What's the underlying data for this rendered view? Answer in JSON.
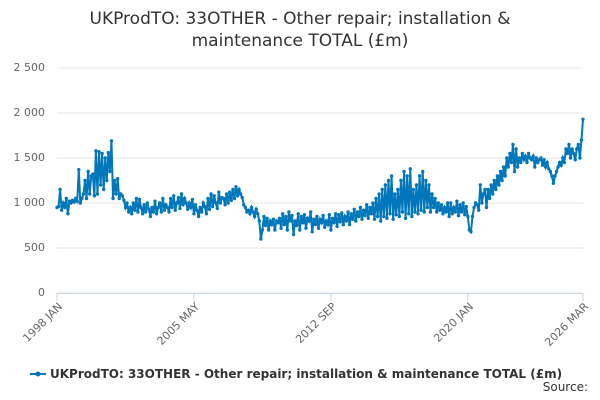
{
  "chart_data": {
    "type": "line",
    "title": [
      "UKProdTO: 33OTHER - Other repair; installation &",
      "maintenance TOTAL (£m)"
    ],
    "source": "Source:",
    "categories": [
      "1998 JAN",
      null,
      null,
      null,
      null,
      null,
      null,
      null,
      null,
      null,
      null,
      null,
      null,
      null,
      null,
      null,
      null,
      null,
      null,
      null,
      null,
      null,
      null,
      null,
      null,
      null,
      null,
      null,
      null,
      null,
      null,
      null,
      null,
      null,
      null,
      null,
      null,
      null,
      null,
      null,
      null,
      null,
      null,
      null,
      null,
      null,
      null,
      null,
      null,
      null,
      null,
      null,
      null,
      null,
      null,
      null,
      null,
      null,
      null,
      null,
      null,
      null,
      null,
      null,
      null,
      null,
      null,
      null,
      null,
      null,
      null,
      null,
      null,
      null,
      null,
      null,
      null,
      null,
      null,
      null,
      null,
      null,
      null,
      null,
      null,
      null,
      null,
      null,
      "2005 MAY",
      null,
      null,
      null,
      null,
      null,
      null,
      null,
      null,
      null,
      null,
      null,
      null,
      null,
      null,
      null,
      null,
      null,
      null,
      null,
      null,
      null,
      null,
      null,
      null,
      null,
      null,
      null,
      null,
      null,
      null,
      null,
      null,
      null,
      null,
      null,
      null,
      null,
      null,
      null,
      null,
      null,
      null,
      null,
      null,
      null,
      null,
      null,
      null,
      null,
      null,
      null,
      null,
      null,
      null,
      null,
      null,
      null,
      null,
      null,
      null,
      null,
      null,
      null,
      null,
      null,
      null,
      null,
      null,
      null,
      null,
      null,
      null,
      null,
      null,
      null,
      null,
      null,
      null,
      null,
      null,
      null,
      null,
      null,
      null,
      null,
      null,
      null,
      "2012 SEP",
      null,
      null,
      null,
      null,
      null,
      null,
      null,
      null,
      null,
      null,
      null,
      null,
      null,
      null,
      null,
      null,
      null,
      null,
      null,
      null,
      null,
      null,
      null,
      null,
      null,
      null,
      null,
      null,
      null,
      null,
      null,
      null,
      null,
      null,
      null,
      null,
      null,
      null,
      null,
      null,
      null,
      null,
      null,
      null,
      null,
      null,
      null,
      null,
      null,
      null,
      null,
      null,
      null,
      null,
      null,
      null,
      null,
      null,
      null,
      null,
      null,
      null,
      null,
      null,
      null,
      null,
      null,
      null,
      null,
      null,
      null,
      null,
      null,
      null,
      null,
      null,
      null,
      null,
      null,
      null,
      null,
      null,
      null,
      null,
      null,
      null,
      null,
      "2020 JAN",
      null,
      null,
      null,
      null,
      null,
      null,
      null,
      null,
      null,
      null,
      null,
      null,
      null,
      null,
      null,
      null,
      null,
      null,
      null,
      null,
      null,
      null,
      null,
      null,
      null,
      null,
      null,
      null,
      null,
      null,
      null,
      null,
      null,
      null,
      null,
      null,
      null,
      null,
      null,
      null,
      null,
      null,
      null,
      null,
      null,
      null,
      null,
      null,
      null,
      null,
      null,
      null,
      null,
      null,
      null,
      null,
      null,
      null,
      null,
      null,
      null,
      null,
      null,
      null,
      null,
      null,
      null,
      null,
      null,
      null,
      null,
      null,
      null,
      "2026 MAR"
    ],
    "series": [
      {
        "name": "UKProdTO: 33OTHER - Other repair; installation & maintenance TOTAL (£m)",
        "color": "#0077bb",
        "values": [
          950,
          960,
          1150,
          920,
          1000,
          950,
          1050,
          880,
          1020,
          1000,
          1030,
          1010,
          1050,
          1020,
          1370,
          1000,
          1050,
          1100,
          1250,
          1050,
          1350,
          1100,
          1300,
          1320,
          1080,
          1580,
          1100,
          1570,
          1200,
          1550,
          1150,
          1500,
          1250,
          1560,
          1350,
          1690,
          1050,
          1250,
          1100,
          1270,
          1050,
          1100,
          1080,
          1030,
          950,
          1000,
          900,
          950,
          880,
          1000,
          920,
          1050,
          900,
          1040,
          950,
          880,
          980,
          900,
          1000,
          930,
          850,
          950,
          900,
          1020,
          880,
          950,
          1000,
          900,
          1050,
          920,
          980,
          950,
          900,
          1050,
          950,
          1080,
          920,
          1000,
          1060,
          940,
          1100,
          980,
          1050,
          1000,
          930,
          1000,
          950,
          1040,
          880,
          980,
          920,
          850,
          950,
          900,
          1000,
          960,
          880,
          1050,
          930,
          1100,
          960,
          1080,
          1000,
          940,
          1120,
          1000,
          1060,
          1050,
          980,
          1100,
          1000,
          1120,
          1030,
          1150,
          1050,
          1180,
          1080,
          1150,
          1100,
          1060,
          980,
          950,
          900,
          920,
          880,
          950,
          900,
          850,
          930,
          880,
          800,
          600,
          700,
          850,
          750,
          830,
          700,
          800,
          760,
          820,
          700,
          800,
          780,
          830,
          720,
          880,
          760,
          850,
          700,
          900,
          800,
          860,
          650,
          800,
          750,
          880,
          700,
          850,
          780,
          870,
          720,
          830,
          800,
          900,
          680,
          820,
          760,
          850,
          720,
          820,
          780,
          860,
          730,
          800,
          760,
          870,
          700,
          830,
          780,
          880,
          740,
          870,
          790,
          890,
          760,
          850,
          800,
          900,
          760,
          880,
          820,
          930,
          800,
          900,
          850,
          950,
          820,
          920,
          860,
          980,
          830,
          950,
          880,
          1000,
          820,
          1050,
          850,
          1100,
          800,
          1150,
          850,
          1200,
          830,
          1250,
          880,
          1300,
          820,
          1100,
          870,
          1150,
          850,
          1250,
          900,
          1350,
          830,
          1300,
          880,
          1380,
          850,
          1150,
          900,
          1200,
          880,
          1300,
          920,
          1350,
          900,
          1250,
          950,
          1200,
          900,
          1100,
          950,
          1050,
          900,
          1000,
          920,
          980,
          880,
          950,
          900,
          1000,
          850,
          1000,
          880,
          950,
          900,
          1020,
          860,
          980,
          900,
          1000,
          870,
          960,
          850,
          700,
          680,
          850,
          950,
          1000,
          980,
          920,
          1200,
          1000,
          1100,
          1150,
          950,
          1150,
          1050,
          1200,
          1100,
          1250,
          1150,
          1300,
          1200,
          1350,
          1250,
          1400,
          1300,
          1500,
          1400,
          1550,
          1450,
          1650,
          1350,
          1600,
          1400,
          1500,
          1450,
          1550,
          1480,
          1520,
          1450,
          1550,
          1500,
          1480,
          1520,
          1400,
          1500,
          1450,
          1480,
          1500,
          1420,
          1480,
          1400,
          1450,
          1380,
          1350,
          1300,
          1220,
          1300,
          1350,
          1400,
          1450,
          1420,
          1500,
          1450,
          1600,
          1550,
          1650,
          1500,
          1600,
          1550,
          1480,
          1600,
          1650,
          1500,
          1700,
          1930
        ]
      }
    ],
    "ylim": [
      0,
      2500
    ],
    "yticks": [
      0,
      500,
      {
        "value": 1000,
        "label": "1 000"
      },
      {
        "value": 1500,
        "label": "1 500"
      },
      {
        "value": 2000,
        "label": "2 000"
      },
      {
        "value": 2500,
        "label": "2 500"
      }
    ],
    "grid": true
  }
}
